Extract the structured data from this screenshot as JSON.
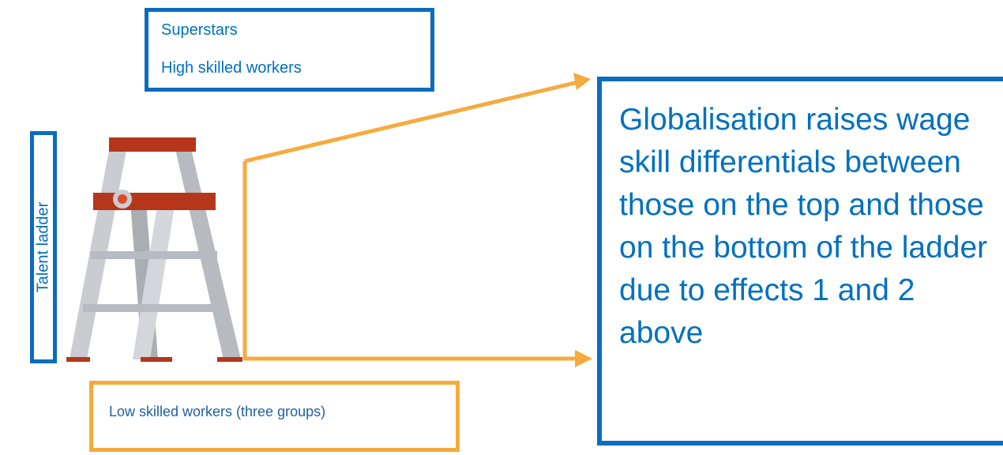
{
  "top_box": {
    "lines": [
      "Superstars",
      "High skilled workers"
    ]
  },
  "side_label": "Talent ladder",
  "bottom_box": {
    "text": "Low skilled workers (three groups)"
  },
  "callout": {
    "text": "Globalisation raises wage skill differentials between those on the top and those on the bottom of the ladder due to effects 1 and 2 above"
  }
}
